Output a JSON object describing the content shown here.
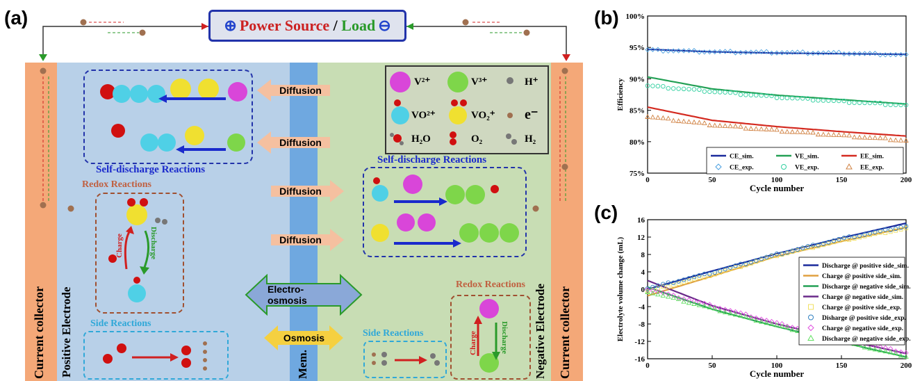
{
  "panels": {
    "a": "(a)",
    "b": "(b)",
    "c": "(c)"
  },
  "power": {
    "plus": "⊕",
    "power_source": "Power Source",
    "slash": " / ",
    "load": "Load",
    "minus": "⊖"
  },
  "cell": {
    "current_collector": "Current  collector",
    "positive_electrode": "Positive Electrode",
    "negative_electrode": "Negative Electrode",
    "membrane": "Mem.",
    "self_discharge": "Self-discharge Reactions",
    "redox": "Redox Reactions",
    "side": "Side Reactions",
    "diffusion": "Diffusion",
    "electro_osmosis": "Electro-osmosis",
    "osmosis": "Osmosis",
    "charge": "Charge",
    "discharge": "Discharge"
  },
  "species": {
    "v2": "V²⁺",
    "v3": "V³⁺",
    "h": "H⁺",
    "vo2": "VO²⁺",
    "vo2p": "VO₂⁺",
    "e": "e⁻",
    "h2o": "H₂O",
    "o2": "O₂",
    "h2": "H₂"
  },
  "colors": {
    "v2": "#d946d9",
    "v3": "#7ed64a",
    "vo2": "#4fd0e6",
    "vo2p": "#f0e030",
    "o": "#d01010",
    "h": "#777777"
  },
  "chart_data": [
    {
      "type": "line",
      "id": "b",
      "xlabel": "Cycle number",
      "ylabel": "Efficiency",
      "xlim": [
        0,
        200
      ],
      "ylim": [
        75,
        100
      ],
      "xticks": [
        0,
        50,
        100,
        150,
        200
      ],
      "yticks": [
        "75%",
        "80%",
        "85%",
        "90%",
        "95%",
        "100%"
      ],
      "series": [
        {
          "name": "CE_sim.",
          "color": "#1a2a9c",
          "x": [
            0,
            50,
            100,
            150,
            200
          ],
          "values": [
            94.7,
            94.3,
            94.1,
            94.0,
            93.9
          ]
        },
        {
          "name": "VE_sim.",
          "color": "#23a055",
          "x": [
            0,
            50,
            100,
            150,
            200
          ],
          "values": [
            90.3,
            88.4,
            87.4,
            86.7,
            86.0
          ]
        },
        {
          "name": "EE_sim.",
          "color": "#d42a20",
          "x": [
            0,
            50,
            100,
            150,
            200
          ],
          "values": [
            85.5,
            83.4,
            82.4,
            81.6,
            80.9
          ]
        },
        {
          "name": "CE_exp.",
          "color": "#4aa0e0",
          "marker": "diamond",
          "x": [
            0,
            50,
            100,
            150,
            200
          ],
          "values": [
            94.6,
            94.3,
            94.2,
            94.1,
            93.8
          ]
        },
        {
          "name": "VE_exp.",
          "color": "#30d0a0",
          "marker": "circle",
          "x": [
            0,
            50,
            100,
            150,
            200
          ],
          "values": [
            88.9,
            88.0,
            87.1,
            86.4,
            85.8
          ]
        },
        {
          "name": "EE_exp.",
          "color": "#d08040",
          "marker": "triangle",
          "x": [
            0,
            50,
            100,
            150,
            200
          ],
          "values": [
            84.0,
            82.7,
            81.8,
            81.0,
            80.2
          ]
        }
      ],
      "legend": "bottom"
    },
    {
      "type": "line",
      "id": "c",
      "xlabel": "Cycle number",
      "ylabel": "Electrolyte volume change (mL)",
      "xlim": [
        0,
        200
      ],
      "ylim": [
        -16,
        16
      ],
      "xticks": [
        0,
        50,
        100,
        150,
        200
      ],
      "yticks": [
        -16,
        -12,
        -8,
        -4,
        0,
        4,
        8,
        12,
        16
      ],
      "series": [
        {
          "name": "Discharge @ positive side_sim.",
          "color": "#1a2a9c",
          "x": [
            0,
            50,
            100,
            150,
            200
          ],
          "values": [
            0.0,
            4.2,
            8.2,
            11.8,
            15.2
          ]
        },
        {
          "name": "Charge @ positive side_sim.",
          "color": "#e0a040",
          "x": [
            0,
            50,
            100,
            150,
            200
          ],
          "values": [
            -1.5,
            3.0,
            7.6,
            11.0,
            14.2
          ]
        },
        {
          "name": "Discharge @ negative side_sim.",
          "color": "#23a055",
          "x": [
            0,
            50,
            100,
            150,
            200
          ],
          "values": [
            0.5,
            -4.6,
            -8.6,
            -12.2,
            -15.6
          ]
        },
        {
          "name": "Charge @ negative side_sim.",
          "color": "#6a2a8a",
          "x": [
            0,
            50,
            100,
            150,
            200
          ],
          "values": [
            2.0,
            -3.8,
            -8.0,
            -11.5,
            -14.8
          ]
        },
        {
          "name": "Charge @ positive side_exp.",
          "color": "#f0e060",
          "marker": "square",
          "x": [
            0,
            50,
            100,
            150,
            200
          ],
          "values": [
            -0.5,
            3.3,
            7.8,
            11.2,
            14.0
          ]
        },
        {
          "name": "Disharge @ positive side_exp.",
          "color": "#3080c0",
          "marker": "circle",
          "x": [
            0,
            50,
            100,
            150,
            200
          ],
          "values": [
            0.2,
            3.8,
            8.0,
            11.6,
            14.5
          ]
        },
        {
          "name": "Charge @ negative side_exp.",
          "color": "#e050e0",
          "marker": "diamond",
          "x": [
            0,
            50,
            100,
            150,
            200
          ],
          "values": [
            0.0,
            -3.8,
            -7.8,
            -11.4,
            -14.6
          ]
        },
        {
          "name": "Discharge @ negative side_exp.",
          "color": "#60e060",
          "marker": "triangle",
          "x": [
            0,
            50,
            100,
            150,
            200
          ],
          "values": [
            -0.5,
            -4.4,
            -8.3,
            -12.0,
            -15.4
          ]
        }
      ],
      "legend": "center-right"
    }
  ]
}
